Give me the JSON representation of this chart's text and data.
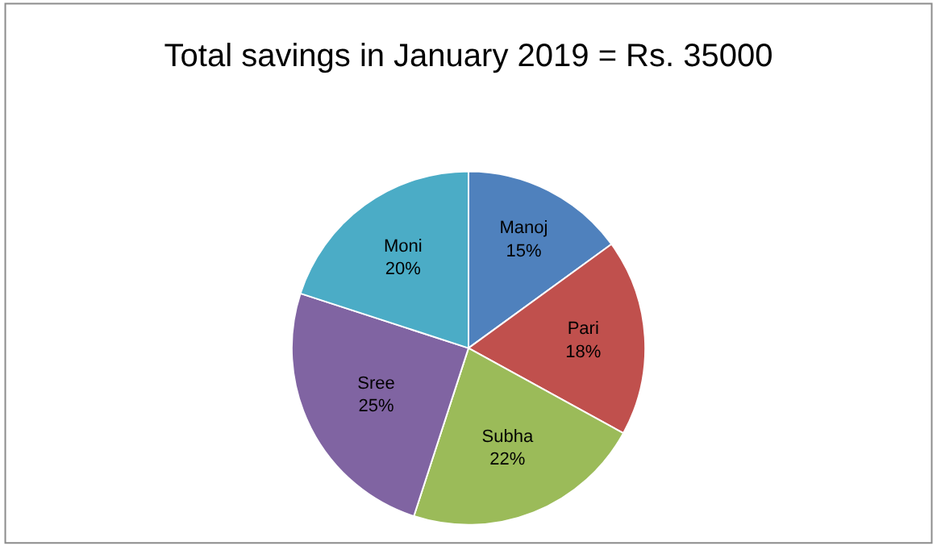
{
  "chart_data": {
    "type": "pie",
    "title": "Total savings in January 2019 = Rs. 35000",
    "categories": [
      "Manoj",
      "Pari",
      "Subha",
      "Sree",
      "Moni"
    ],
    "values": [
      15,
      18,
      22,
      25,
      20
    ],
    "value_labels": [
      "15%",
      "18%",
      "22%",
      "25%",
      "20%"
    ],
    "colors": [
      "#4f81bd",
      "#c0504d",
      "#9bbb59",
      "#8064a2",
      "#4bacc6"
    ],
    "legend": false
  }
}
